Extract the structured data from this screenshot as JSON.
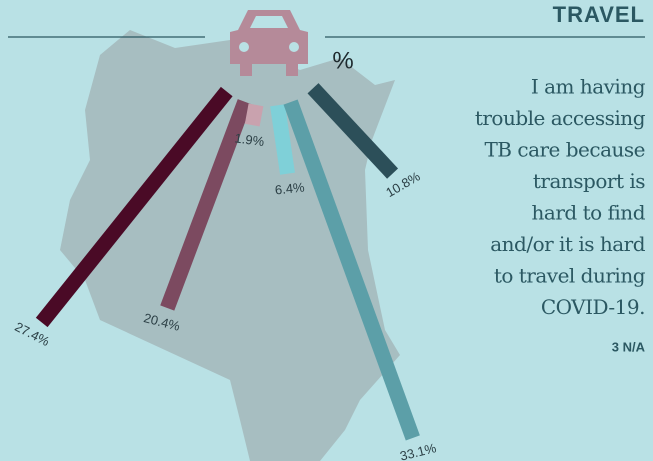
{
  "chart_data": {
    "type": "radial-bar",
    "title": "TRAVEL",
    "unit_label": "%",
    "annotation": [
      "I am having",
      "trouble accessing",
      "TB care because",
      "transport is",
      "hard to find",
      "and/or it is hard",
      "to travel during",
      "COVID-19."
    ],
    "note": "3 N/A",
    "values": [
      27.4,
      20.4,
      1.9,
      6.4,
      33.1,
      10.8
    ],
    "value_labels": [
      "27.4%",
      "20.4%",
      "1.9%",
      "6.4%",
      "33.1%",
      "10.8%"
    ],
    "colors": [
      "#4a0a26",
      "#7c4a60",
      "#c9a2ae",
      "#7fd0d8",
      "#5c9fa8",
      "#2c4f59"
    ]
  }
}
